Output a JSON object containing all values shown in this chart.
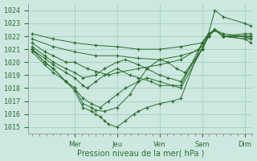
{
  "title": "",
  "xlabel": "Pression niveau de la mer( hPa )",
  "ylabel": "",
  "bg_color": "#cce8e0",
  "grid_color": "#99ccbb",
  "line_color": "#2d6e2d",
  "marker_color": "#2d6e2d",
  "ylim": [
    1014.5,
    1024.5
  ],
  "yticks": [
    1015,
    1016,
    1017,
    1018,
    1019,
    1020,
    1021,
    1022,
    1023,
    1024
  ],
  "xlim": [
    -0.1,
    5.2
  ],
  "day_tick_positions": [
    1.0,
    2.0,
    3.0,
    4.0,
    5.0
  ],
  "day_labels": [
    "Mer",
    "Jeu",
    "Ven",
    "Sam",
    "Dim"
  ],
  "series": [
    {
      "comment": "top line - nearly straight from 1022.2 to 1022.0, minor dip",
      "x": [
        0.0,
        0.5,
        1.0,
        1.5,
        2.0,
        2.5,
        3.0,
        3.5,
        4.0,
        4.15,
        4.3,
        4.5,
        5.0,
        5.15
      ],
      "y": [
        1022.2,
        1021.8,
        1021.5,
        1021.3,
        1021.2,
        1021.0,
        1021.0,
        1021.2,
        1021.5,
        1022.0,
        1022.5,
        1022.0,
        1022.2,
        1022.2
      ]
    },
    {
      "comment": "second line from top - gradual descent to ~1020",
      "x": [
        0.0,
        0.5,
        1.0,
        1.5,
        2.0,
        2.5,
        3.0,
        3.5,
        4.0,
        4.15,
        4.3,
        4.5,
        5.0,
        5.15
      ],
      "y": [
        1021.8,
        1021.2,
        1020.8,
        1020.5,
        1020.5,
        1020.3,
        1020.2,
        1020.5,
        1021.0,
        1022.0,
        1022.5,
        1022.0,
        1022.0,
        1022.0
      ]
    },
    {
      "comment": "third line - descent to ~1019 near Jeu",
      "x": [
        0.0,
        0.3,
        0.5,
        0.8,
        1.0,
        1.3,
        1.5,
        1.8,
        2.0,
        2.5,
        3.0,
        3.5,
        4.0,
        4.15,
        4.3,
        4.5,
        5.0,
        5.15
      ],
      "y": [
        1021.5,
        1020.8,
        1020.5,
        1020.0,
        1020.0,
        1019.5,
        1019.3,
        1019.0,
        1019.2,
        1019.5,
        1019.8,
        1020.2,
        1021.2,
        1022.0,
        1022.5,
        1022.0,
        1022.0,
        1022.0
      ]
    },
    {
      "comment": "fourth line - descent then complex path in Jeu/Ven area",
      "x": [
        0.0,
        0.3,
        0.5,
        0.8,
        1.0,
        1.2,
        1.5,
        1.7,
        2.0,
        2.2,
        2.5,
        2.7,
        3.0,
        3.2,
        3.5,
        4.0,
        4.15,
        4.3,
        4.5,
        5.0,
        5.15
      ],
      "y": [
        1021.2,
        1020.5,
        1020.0,
        1019.5,
        1019.2,
        1018.8,
        1019.0,
        1019.5,
        1020.0,
        1020.2,
        1019.8,
        1019.5,
        1019.0,
        1018.8,
        1018.5,
        1021.0,
        1022.2,
        1022.5,
        1022.0,
        1021.8,
        1021.8
      ]
    },
    {
      "comment": "fifth line - dips to ~1018 around Jeu",
      "x": [
        0.0,
        0.3,
        0.5,
        0.8,
        1.0,
        1.2,
        1.3,
        1.5,
        1.7,
        2.0,
        2.3,
        2.5,
        2.8,
        3.0,
        3.5,
        4.0,
        4.15,
        4.3,
        4.5,
        5.0,
        5.15
      ],
      "y": [
        1021.0,
        1020.3,
        1019.8,
        1019.2,
        1018.8,
        1018.2,
        1018.0,
        1018.5,
        1019.0,
        1019.5,
        1019.0,
        1018.8,
        1018.5,
        1018.2,
        1018.2,
        1021.5,
        1022.2,
        1022.5,
        1022.0,
        1022.0,
        1021.8
      ]
    },
    {
      "comment": "sixth line - dips to 1016 area",
      "x": [
        0.0,
        0.3,
        0.5,
        0.8,
        1.0,
        1.2,
        1.4,
        1.6,
        1.8,
        2.0,
        2.2,
        2.5,
        2.7,
        3.0,
        3.3,
        3.5,
        4.0,
        4.15,
        4.3,
        4.5,
        5.0,
        5.15
      ],
      "y": [
        1021.0,
        1020.0,
        1019.5,
        1018.5,
        1018.0,
        1017.2,
        1016.8,
        1016.5,
        1017.0,
        1017.5,
        1018.0,
        1018.5,
        1018.8,
        1018.5,
        1018.2,
        1018.0,
        1021.0,
        1022.0,
        1022.5,
        1022.0,
        1021.8,
        1021.5
      ]
    },
    {
      "comment": "seventh line - complex, dips to ~1016 around Jeu, bounces with Ven hump",
      "x": [
        0.0,
        0.3,
        0.5,
        0.8,
        1.0,
        1.2,
        1.4,
        1.5,
        1.7,
        2.0,
        2.3,
        2.5,
        2.7,
        3.0,
        3.2,
        3.4,
        3.6,
        4.0,
        4.15,
        4.3,
        4.5,
        5.0,
        5.15
      ],
      "y": [
        1020.8,
        1019.8,
        1019.2,
        1018.5,
        1018.0,
        1016.8,
        1016.5,
        1016.3,
        1016.2,
        1016.5,
        1017.5,
        1018.5,
        1019.5,
        1020.2,
        1020.0,
        1019.5,
        1019.2,
        1021.0,
        1022.0,
        1022.5,
        1022.2,
        1022.0,
        1022.0
      ]
    },
    {
      "comment": "deepest line - dips to ~1015 around Jeu",
      "x": [
        0.0,
        0.3,
        0.5,
        0.8,
        1.0,
        1.2,
        1.4,
        1.5,
        1.6,
        1.7,
        1.8,
        2.0,
        2.2,
        2.4,
        2.5,
        2.7,
        3.0,
        3.3,
        3.5,
        4.0,
        4.15,
        4.3,
        4.5,
        5.0,
        5.15
      ],
      "y": [
        1021.0,
        1020.0,
        1019.5,
        1018.5,
        1017.8,
        1016.5,
        1016.2,
        1016.0,
        1015.8,
        1015.5,
        1015.2,
        1015.0,
        1015.5,
        1016.0,
        1016.2,
        1016.5,
        1016.8,
        1017.0,
        1017.2,
        1021.5,
        1022.2,
        1024.0,
        1023.5,
        1023.0,
        1022.8
      ]
    }
  ]
}
